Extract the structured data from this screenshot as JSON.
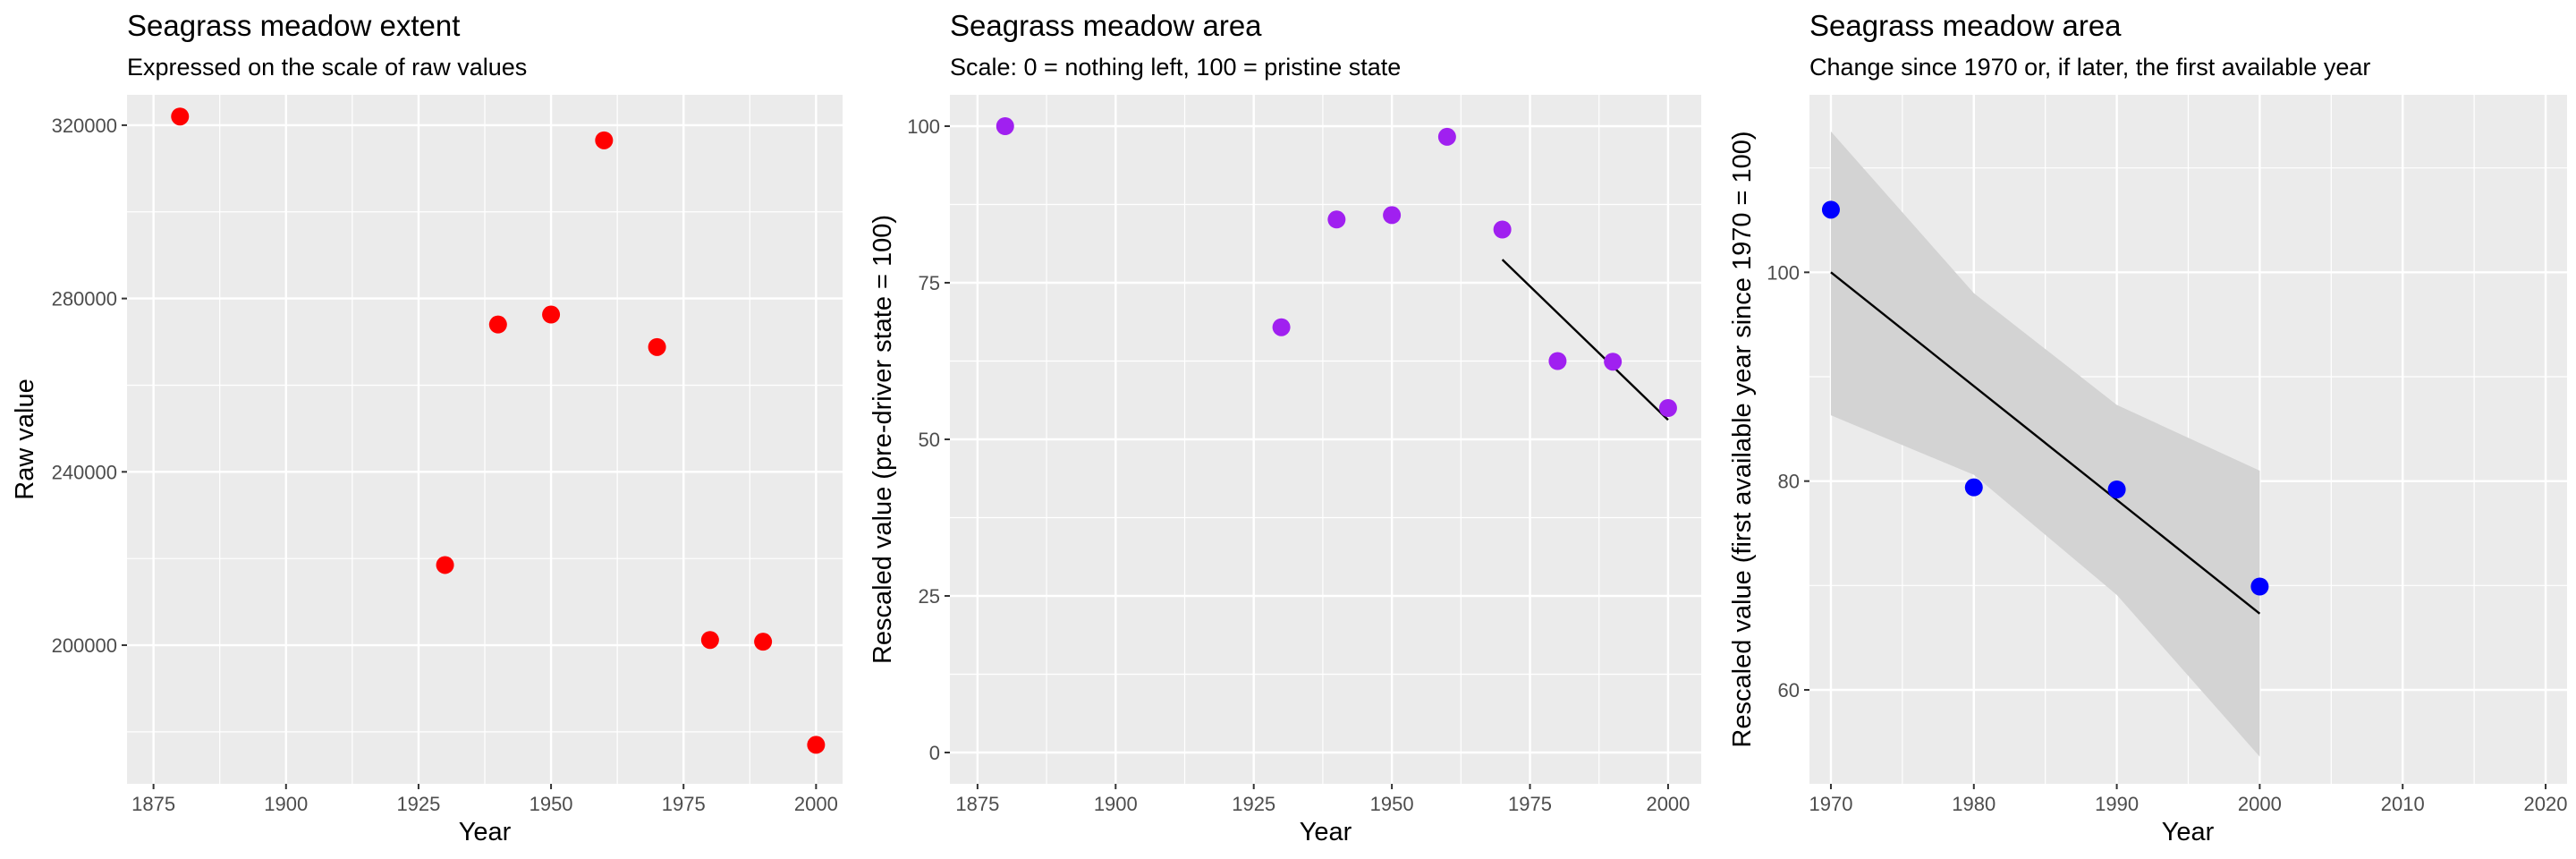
{
  "chart_data": [
    {
      "type": "scatter",
      "title": "Seagrass meadow extent",
      "subtitle": "Expressed on the scale of raw values",
      "xlabel": "Year",
      "ylabel": "Raw value",
      "xlim": [
        1870,
        2005
      ],
      "ylim": [
        168000,
        327000
      ],
      "xticks": [
        1875,
        1900,
        1925,
        1950,
        1975,
        2000
      ],
      "yticks": [
        200000,
        240000,
        280000,
        320000
      ],
      "point_color": "#ff0000",
      "background": "#ebebeb",
      "grid": true,
      "x": [
        1880,
        1930,
        1940,
        1950,
        1960,
        1970,
        1980,
        1990,
        2000
      ],
      "y": [
        322000,
        218500,
        274000,
        276300,
        316500,
        268800,
        201200,
        200800,
        177000
      ]
    },
    {
      "type": "scatter",
      "title": "Seagrass meadow area",
      "subtitle": "Scale: 0 = nothing left, 100 = pristine state",
      "xlabel": "Year",
      "ylabel": "Rescaled value (pre-driver state = 100)",
      "xlim": [
        1870,
        2006
      ],
      "ylim": [
        -5,
        105
      ],
      "xticks": [
        1875,
        1900,
        1925,
        1950,
        1975,
        2000
      ],
      "yticks": [
        0,
        25,
        50,
        75,
        100
      ],
      "point_color": "#a020f0",
      "background": "#ebebeb",
      "grid": true,
      "x": [
        1880,
        1930,
        1940,
        1950,
        1960,
        1970,
        1980,
        1990,
        2000
      ],
      "y": [
        100,
        67.9,
        85.1,
        85.8,
        98.3,
        83.5,
        62.5,
        62.4,
        55
      ],
      "trend": {
        "x": [
          1970,
          2000
        ],
        "y": [
          78.7,
          53.1
        ],
        "color": "#000000"
      }
    },
    {
      "type": "scatter",
      "title": "Seagrass meadow area",
      "subtitle": "Change since 1970 or, if later, the first available year",
      "xlabel": "Year",
      "ylabel": "Rescaled value (first available year since 1970 = 100)",
      "xlim": [
        1968.5,
        2021.5
      ],
      "ylim": [
        51,
        117
      ],
      "xticks": [
        1970,
        1980,
        1990,
        2000,
        2010,
        2020
      ],
      "yticks": [
        60,
        80,
        100
      ],
      "point_color": "#0000ff",
      "background": "#ebebeb",
      "grid": true,
      "x": [
        1970,
        1980,
        1990,
        2000
      ],
      "y": [
        106,
        79.4,
        79.2,
        69.9
      ],
      "trend": {
        "x": [
          1970,
          2000
        ],
        "y": [
          100,
          67.3
        ],
        "color": "#000000"
      },
      "band": {
        "x": [
          1970,
          1980,
          1990,
          2000
        ],
        "lower": [
          86.3,
          80.6,
          69.1,
          53.6
        ],
        "upper": [
          113.5,
          98,
          87.3,
          81
        ],
        "color": "#d3d3d3"
      }
    }
  ]
}
